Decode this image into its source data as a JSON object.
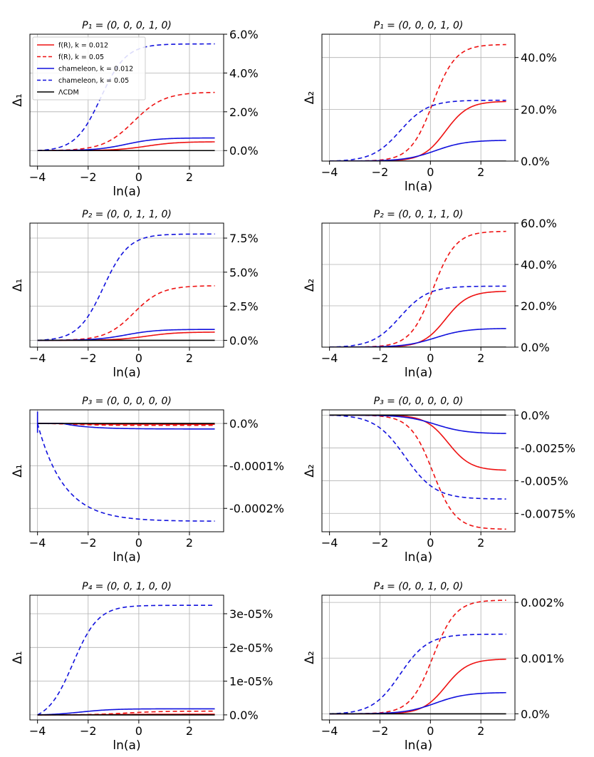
{
  "figure": {
    "name": "modified-gravity-deviation-panels"
  },
  "legend": {
    "entries": [
      {
        "label": "f(R), k = 0.012",
        "color": "#ee1111",
        "dash": false
      },
      {
        "label": "f(R), k = 0.05",
        "color": "#ee1111",
        "dash": true
      },
      {
        "label": "chameleon, k = 0.012",
        "color": "#1111dd",
        "dash": false
      },
      {
        "label": "chameleon, k = 0.05",
        "color": "#1111dd",
        "dash": true
      },
      {
        "label": "ΛCDM",
        "color": "#000000",
        "dash": false
      }
    ]
  },
  "chart_data": [
    {
      "type": "line",
      "title": "P₁ = (0, 0, 0, 1, 0)",
      "xlabel": "ln(a)",
      "ylabel": "Δ₁",
      "xlim": [
        -4.3,
        3.35
      ],
      "ylim": [
        -0.8,
        6.0
      ],
      "xticks": [
        -4,
        -2,
        0,
        2
      ],
      "xtick_labels": [
        "−4",
        "−2",
        "0",
        "2"
      ],
      "yticks": [
        0,
        2,
        4,
        6
      ],
      "ytick_labels": [
        "0.0%",
        "2.0%",
        "4.0%",
        "6.0%"
      ],
      "grid_y": [
        0,
        2,
        4,
        6
      ],
      "series": [
        {
          "name": "f(R), k = 0.012",
          "final": 0.45,
          "center": 0.3,
          "width": 0.6
        },
        {
          "name": "f(R), k = 0.05",
          "final": 3.0,
          "center": -0.2,
          "width": 0.6
        },
        {
          "name": "chameleon, k = 0.012",
          "final": 0.65,
          "center": -0.5,
          "width": 0.6
        },
        {
          "name": "chameleon, k = 0.05",
          "final": 5.5,
          "center": -1.5,
          "width": 0.5
        },
        {
          "name": "ΛCDM",
          "final": 0,
          "center": 0,
          "width": 1
        }
      ]
    },
    {
      "type": "line",
      "title": "P₁ = (0, 0, 0, 1, 0)",
      "xlabel": "ln(a)",
      "ylabel": "Δ₂",
      "xlim": [
        -4.3,
        3.35
      ],
      "ylim": [
        0,
        49
      ],
      "xticks": [
        -4,
        -2,
        0,
        2
      ],
      "xtick_labels": [
        "−4",
        "−2",
        "0",
        "2"
      ],
      "yticks": [
        0,
        20,
        40
      ],
      "ytick_labels": [
        "0.0%",
        "20.0%",
        "40.0%"
      ],
      "grid_y": [
        0,
        20,
        40
      ],
      "series": [
        {
          "name": "f(R), k = 0.012",
          "final": 23,
          "center": 0.6,
          "width": 0.45
        },
        {
          "name": "f(R), k = 0.05",
          "final": 45,
          "center": 0.1,
          "width": 0.45
        },
        {
          "name": "chameleon, k = 0.012",
          "final": 8,
          "center": 0.2,
          "width": 0.6
        },
        {
          "name": "chameleon, k = 0.05",
          "final": 23.5,
          "center": -1.2,
          "width": 0.55
        },
        {
          "name": "ΛCDM",
          "final": 0,
          "center": 0,
          "width": 1
        }
      ]
    },
    {
      "type": "line",
      "title": "P₂ = (0, 0, 1, 1, 0)",
      "xlabel": "ln(a)",
      "ylabel": "Δ₁",
      "xlim": [
        -4.3,
        3.35
      ],
      "ylim": [
        -0.5,
        8.6
      ],
      "xticks": [
        -4,
        -2,
        0,
        2
      ],
      "xtick_labels": [
        "−4",
        "−2",
        "0",
        "2"
      ],
      "yticks": [
        0,
        2.5,
        5,
        7.5
      ],
      "ytick_labels": [
        "0.0%",
        "2.5%",
        "5.0%",
        "7.5%"
      ],
      "grid_y": [
        0,
        2.5,
        5,
        7.5
      ],
      "series": [
        {
          "name": "f(R), k = 0.012",
          "final": 0.6,
          "center": 0.3,
          "width": 0.6
        },
        {
          "name": "f(R), k = 0.05",
          "final": 4.0,
          "center": -0.2,
          "width": 0.55
        },
        {
          "name": "chameleon, k = 0.012",
          "final": 0.8,
          "center": -0.5,
          "width": 0.6
        },
        {
          "name": "chameleon, k = 0.05",
          "final": 7.8,
          "center": -1.4,
          "width": 0.5
        },
        {
          "name": "ΛCDM",
          "final": 0,
          "center": 0,
          "width": 1
        }
      ]
    },
    {
      "type": "line",
      "title": "P₂ = (0, 0, 1, 1, 0)",
      "xlabel": "ln(a)",
      "ylabel": "Δ₂",
      "xlim": [
        -4.3,
        3.35
      ],
      "ylim": [
        0,
        60
      ],
      "xticks": [
        -4,
        -2,
        0,
        2
      ],
      "xtick_labels": [
        "−4",
        "−2",
        "0",
        "2"
      ],
      "yticks": [
        0,
        20,
        40,
        60
      ],
      "ytick_labels": [
        "0.0%",
        "20.0%",
        "40.0%",
        "60.0%"
      ],
      "grid_y": [
        0,
        20,
        40
      ],
      "series": [
        {
          "name": "f(R), k = 0.012",
          "final": 27,
          "center": 0.6,
          "width": 0.45
        },
        {
          "name": "f(R), k = 0.05",
          "final": 56,
          "center": 0.1,
          "width": 0.45
        },
        {
          "name": "chameleon, k = 0.012",
          "final": 9,
          "center": 0.2,
          "width": 0.6
        },
        {
          "name": "chameleon, k = 0.05",
          "final": 29.5,
          "center": -1.2,
          "width": 0.55
        },
        {
          "name": "ΛCDM",
          "final": 0,
          "center": 0,
          "width": 1
        }
      ]
    },
    {
      "type": "line",
      "title": "P₃ = (0, 0, 0, 0, 0)",
      "xlabel": "ln(a)",
      "ylabel": "Δ₁",
      "xlim": [
        -4.3,
        3.35
      ],
      "ylim": [
        -0.000255,
        3.2e-05
      ],
      "xticks": [
        -4,
        -2,
        0,
        2
      ],
      "xtick_labels": [
        "−4",
        "−2",
        "0",
        "2"
      ],
      "yticks": [
        0,
        -0.0001,
        -0.0002
      ],
      "ytick_labels": [
        "0.0%",
        "-0.0001%",
        "-0.0002%"
      ],
      "grid_y": [
        0,
        -0.0001,
        -0.0002
      ],
      "series": [
        {
          "name": "f(R), k = 0.012",
          "final": -1.8e-06,
          "center": -2.5,
          "width": 0.6
        },
        {
          "name": "f(R), k = 0.05",
          "final": -4.5e-06,
          "center": -2.5,
          "width": 0.6
        },
        {
          "name": "chameleon, k = 0.012",
          "final": -1.3e-05,
          "center": -3.0,
          "width": 1.0,
          "exp": true
        },
        {
          "name": "chameleon, k = 0.05",
          "final": -0.00023,
          "center": -4.0,
          "width": 1.05,
          "exp": true
        },
        {
          "name": "ΛCDM",
          "final": 0,
          "center": 0,
          "width": 1
        }
      ]
    },
    {
      "type": "line",
      "title": "P₃ = (0, 0, 0, 0, 0)",
      "xlabel": "ln(a)",
      "ylabel": "Δ₂",
      "xlim": [
        -4.3,
        3.35
      ],
      "ylim": [
        -0.0089,
        0.0004
      ],
      "xticks": [
        -4,
        -2,
        0,
        2
      ],
      "xtick_labels": [
        "−4",
        "−2",
        "0",
        "2"
      ],
      "yticks": [
        0,
        -0.0025,
        -0.005,
        -0.0075
      ],
      "ytick_labels": [
        "0.0%",
        "-0.0025%",
        "-0.005%",
        "-0.0075%"
      ],
      "grid_y": [
        0,
        -0.0025,
        -0.005,
        -0.0075
      ],
      "series": [
        {
          "name": "f(R), k = 0.012",
          "final": -0.0042,
          "center": 0.7,
          "width": 0.45
        },
        {
          "name": "f(R), k = 0.05",
          "final": -0.0087,
          "center": 0.1,
          "width": 0.45
        },
        {
          "name": "chameleon, k = 0.012",
          "final": -0.0014,
          "center": 0.2,
          "width": 0.6
        },
        {
          "name": "chameleon, k = 0.05",
          "final": -0.0064,
          "center": -1.0,
          "width": 0.6
        },
        {
          "name": "ΛCDM",
          "final": 0,
          "center": 0,
          "width": 1
        }
      ]
    },
    {
      "type": "line",
      "title": "P₄ = (0, 0, 1, 0, 0)",
      "xlabel": "ln(a)",
      "ylabel": "Δ₁",
      "xlim": [
        -4.3,
        3.35
      ],
      "ylim": [
        -1.5e-06,
        3.55e-05
      ],
      "xticks": [
        -4,
        -2,
        0,
        2
      ],
      "xtick_labels": [
        "−4",
        "−2",
        "0",
        "2"
      ],
      "yticks": [
        0,
        1e-05,
        2e-05,
        3e-05
      ],
      "ytick_labels": [
        "0.0%",
        "1e-05%",
        "2e-05%",
        "3e-05%"
      ],
      "grid_y": [
        0,
        1e-05,
        2e-05,
        3e-05
      ],
      "series": [
        {
          "name": "f(R), k = 0.012",
          "final": 2e-07,
          "center": -1.0,
          "width": 0.8
        },
        {
          "name": "f(R), k = 0.05",
          "final": 1.1e-06,
          "center": -0.5,
          "width": 0.7
        },
        {
          "name": "chameleon, k = 0.012",
          "final": 1.8e-06,
          "center": -2.3,
          "width": 0.65
        },
        {
          "name": "chameleon, k = 0.05",
          "final": 3.25e-05,
          "center": -2.6,
          "width": 0.5
        },
        {
          "name": "ΛCDM",
          "final": 0,
          "center": 0,
          "width": 1
        }
      ]
    },
    {
      "type": "line",
      "title": "P₄ = (0, 0, 1, 0, 0)",
      "xlabel": "ln(a)",
      "ylabel": "Δ₂",
      "xlim": [
        -4.3,
        3.35
      ],
      "ylim": [
        -0.00011,
        0.00213
      ],
      "xticks": [
        -4,
        -2,
        0,
        2
      ],
      "xtick_labels": [
        "−4",
        "−2",
        "0",
        "2"
      ],
      "yticks": [
        0,
        0.001,
        0.002
      ],
      "ytick_labels": [
        "0.0%",
        "0.001%",
        "0.002%"
      ],
      "grid_y": [
        0,
        0.001,
        0.002
      ],
      "series": [
        {
          "name": "f(R), k = 0.012",
          "final": 0.00098,
          "center": 0.6,
          "width": 0.45
        },
        {
          "name": "f(R), k = 0.05",
          "final": 0.00204,
          "center": 0.1,
          "width": 0.45
        },
        {
          "name": "chameleon, k = 0.012",
          "final": 0.00038,
          "center": 0.2,
          "width": 0.6
        },
        {
          "name": "chameleon, k = 0.05",
          "final": 0.00143,
          "center": -1.2,
          "width": 0.55
        },
        {
          "name": "ΛCDM",
          "final": 0,
          "center": 0,
          "width": 1
        }
      ]
    }
  ]
}
